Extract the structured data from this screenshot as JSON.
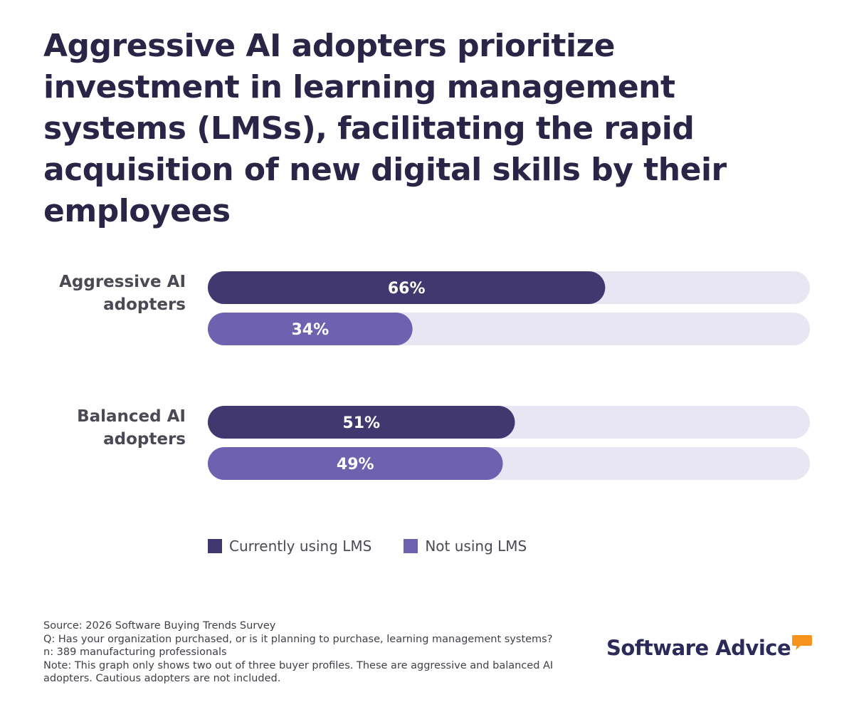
{
  "title": "Aggressive AI adopters prioritize investment in learning management systems (LMSs), facilitating the rapid acquisition of new digital skills by their employees",
  "chart_data": {
    "type": "bar",
    "orientation": "horizontal",
    "title": "Aggressive AI adopters prioritize investment in learning management systems (LMSs), facilitating the rapid acquisition of new digital skills by their employees",
    "categories": [
      "Aggressive AI adopters",
      "Balanced AI adopters"
    ],
    "category_lines": [
      [
        "Aggressive AI",
        "adopters"
      ],
      [
        "Balanced AI",
        "adopters"
      ]
    ],
    "series": [
      {
        "name": "Currently using LMS",
        "values": [
          66,
          51
        ],
        "labels": [
          "66%",
          "51%"
        ],
        "color": "#423870"
      },
      {
        "name": "Not using LMS",
        "values": [
          34,
          49
        ],
        "labels": [
          "34%",
          "49%"
        ],
        "color": "#6e62b0"
      }
    ],
    "track_color": "#e8e6f2",
    "xlim": [
      0,
      100
    ],
    "unit": "%",
    "legend_position": "bottom-left"
  },
  "legend": {
    "items": [
      {
        "label": "Currently using LMS",
        "color": "#423870"
      },
      {
        "label": "Not using LMS",
        "color": "#6e62b0"
      }
    ]
  },
  "footer": {
    "source": "Source: 2026 Software Buying Trends Survey",
    "question": "Q: Has your organization purchased, or is it planning to purchase, learning management systems?",
    "sample": "n: 389 manufacturing professionals",
    "note": "Note: This graph only shows two out of three buyer profiles. These are aggressive and balanced AI adopters. Cautious adopters are not included."
  },
  "brand": {
    "name": "Software Advice",
    "accent_color": "#f7941d",
    "text_color": "#2d2a5a"
  },
  "icons": {
    "brand_mark": "speech-bubble-icon"
  }
}
